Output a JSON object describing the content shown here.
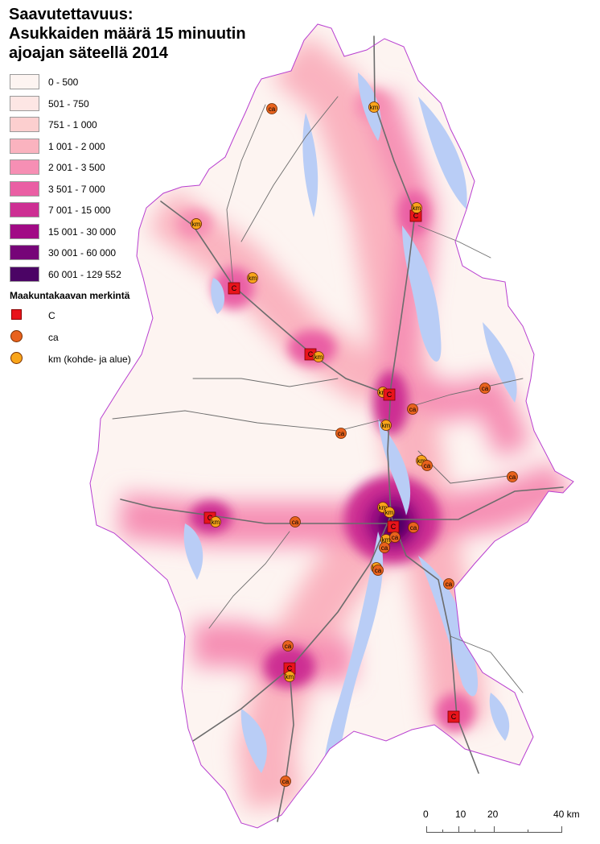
{
  "title_lines": [
    "Saavutettavuus:",
    "Asukkaiden määrä 15 minuutin",
    "ajoajan säteellä 2014"
  ],
  "legend": {
    "classes": [
      {
        "label": "0 - 500",
        "color": "#fdf4f1"
      },
      {
        "label": "501 - 750",
        "color": "#fde6e4"
      },
      {
        "label": "751 - 1 000",
        "color": "#fccfcf"
      },
      {
        "label": "1 001 - 2 000",
        "color": "#fab3bf"
      },
      {
        "label": "2 001 - 3 500",
        "color": "#f68fb4"
      },
      {
        "label": "3 501 - 7 000",
        "color": "#ea5fa4"
      },
      {
        "label": "7 001 - 15 000",
        "color": "#cd2f93"
      },
      {
        "label": "15 001 - 30 000",
        "color": "#a10a85"
      },
      {
        "label": "30 001 - 60 000",
        "color": "#760578"
      },
      {
        "label": "60 001 - 129 552",
        "color": "#4b0465"
      }
    ],
    "symbols_title": "Maakuntakaavan merkintä",
    "symbols": [
      {
        "label": "C",
        "shape": "square",
        "color": "#e8141b"
      },
      {
        "label": "ca",
        "shape": "circle",
        "color": "#e8621d"
      },
      {
        "label": "km (kohde- ja alue)",
        "shape": "circle",
        "color": "#f9a51a"
      }
    ]
  },
  "colors": {
    "water": "#b9cdf6",
    "boundary": "#b83fd0",
    "road": "#6c6c6c",
    "background": "#ffffff"
  },
  "scale": {
    "ticks": [
      "0",
      "10",
      "20",
      "40 km"
    ]
  },
  "map_labels": {
    "c": "C",
    "ca": "ca",
    "km": "km"
  }
}
